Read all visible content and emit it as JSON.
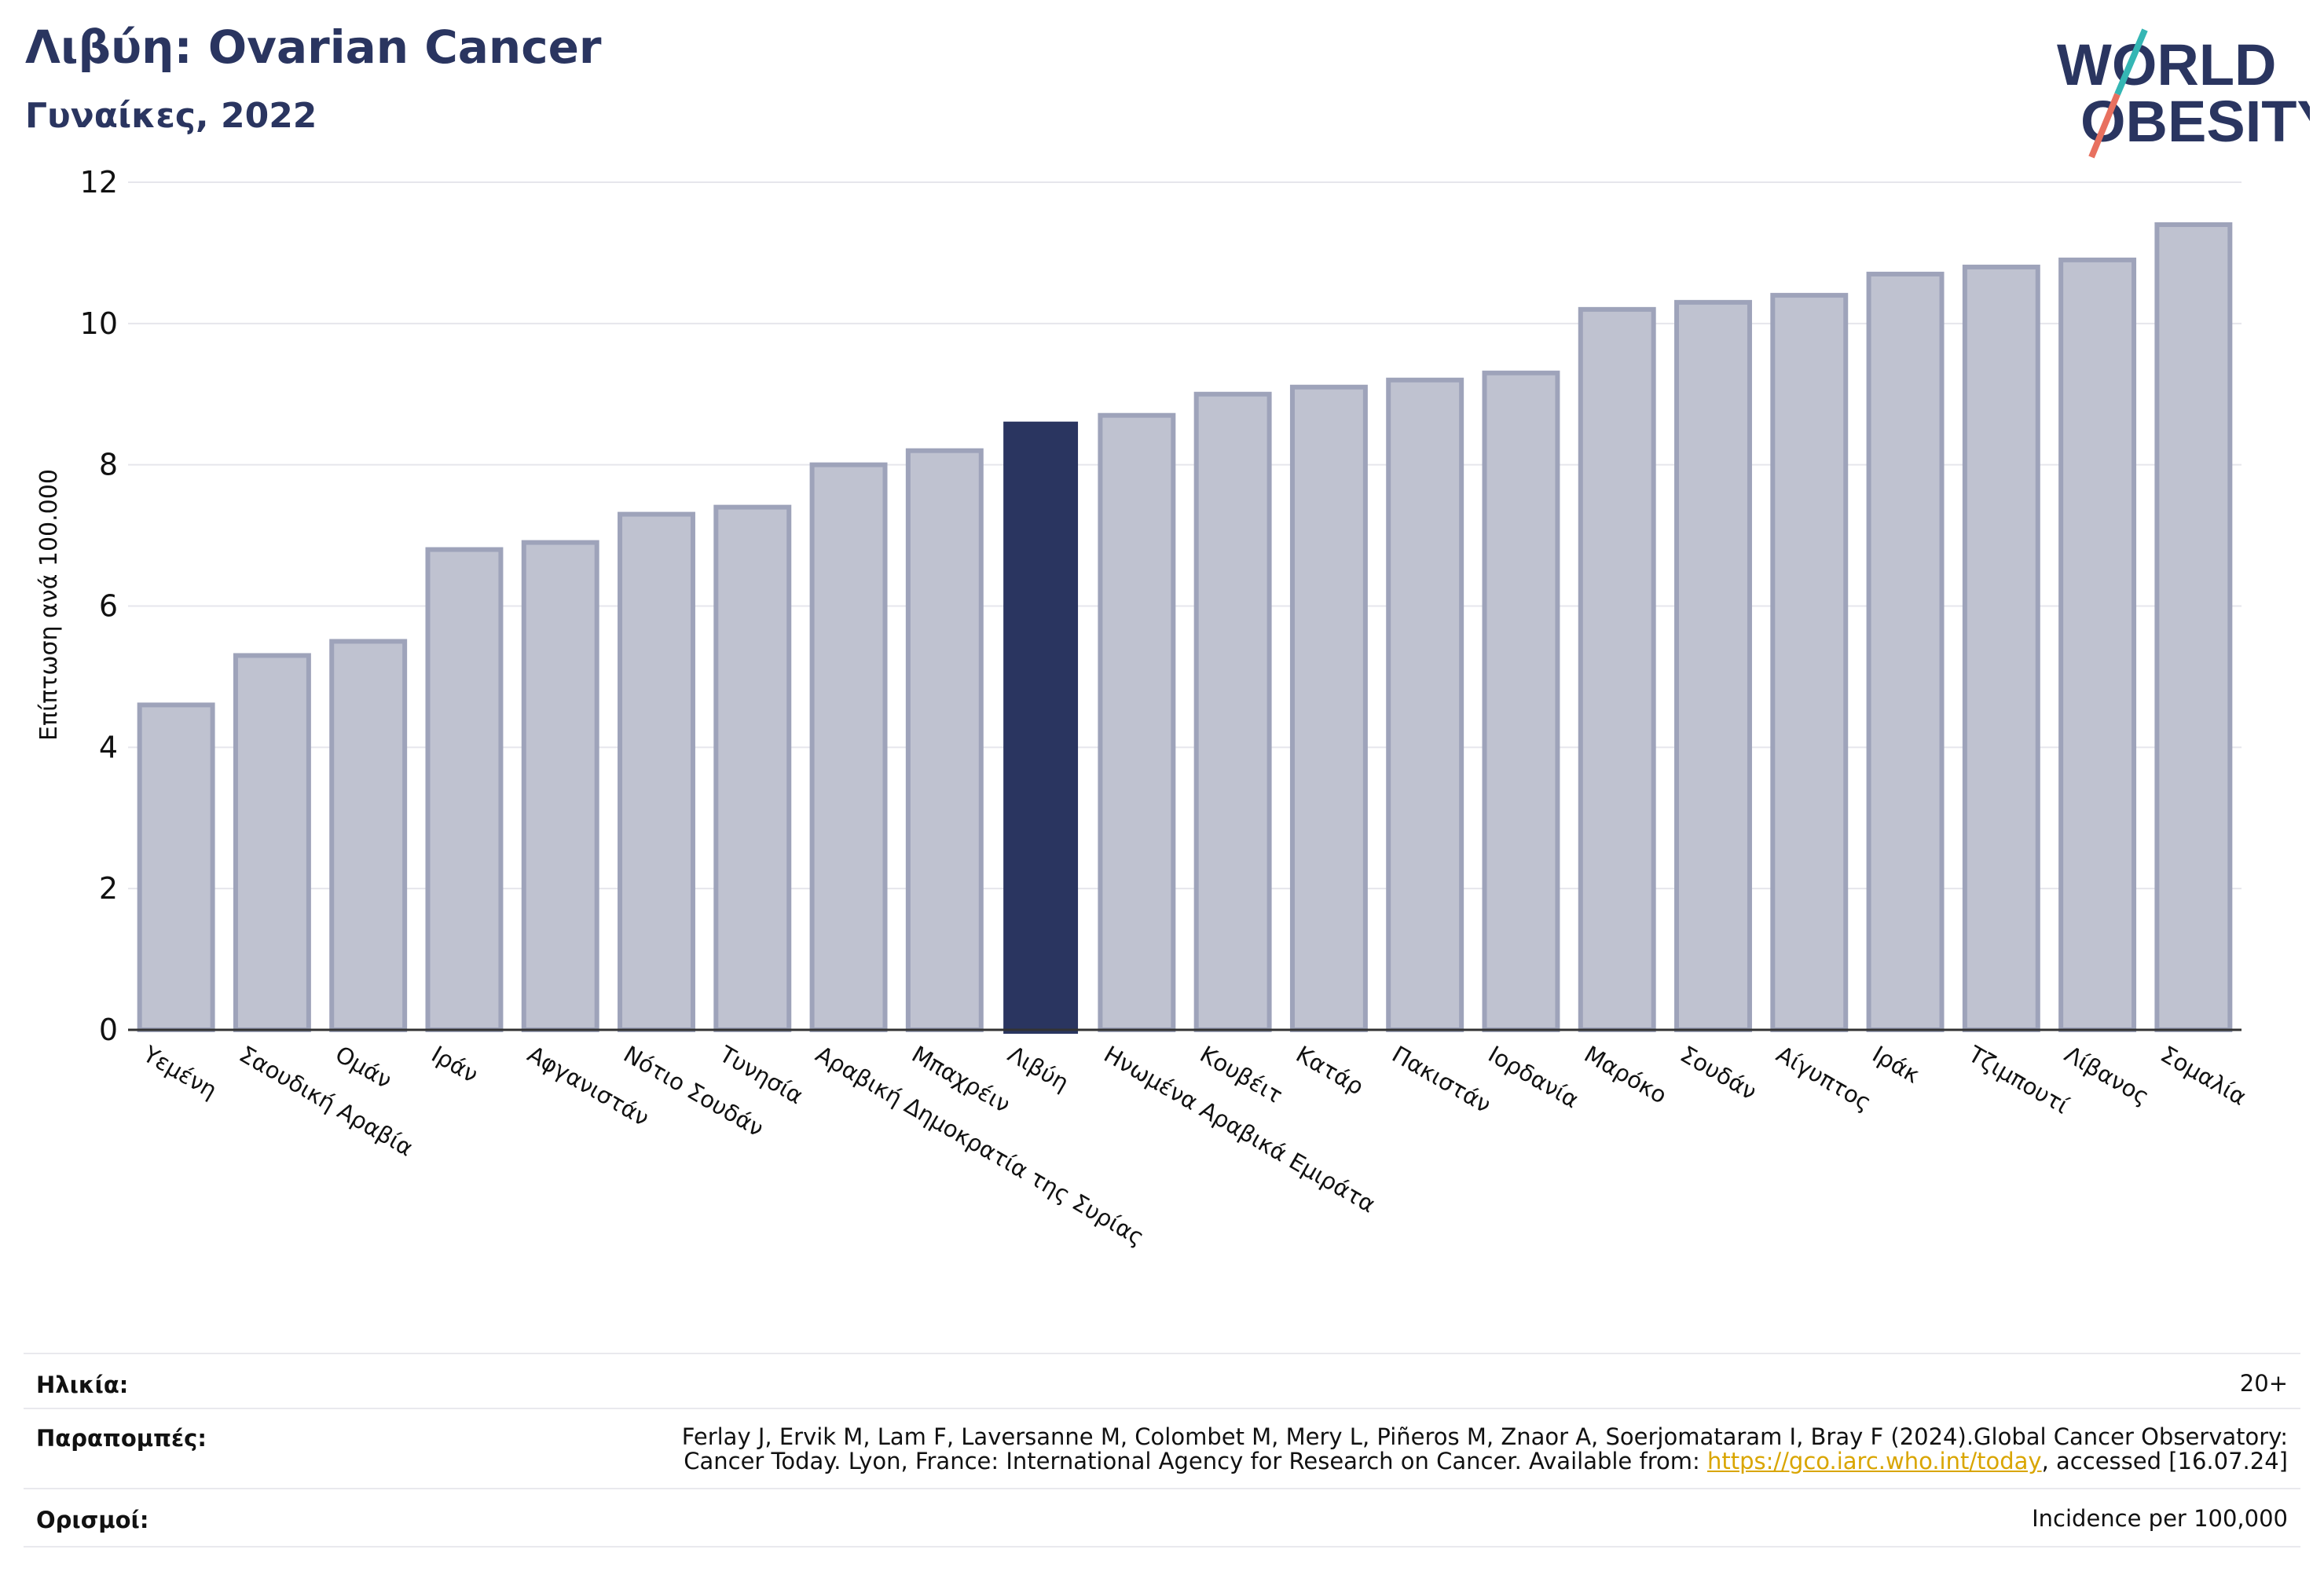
{
  "header": {
    "title": "Λιβύη: Ovarian Cancer",
    "subtitle": "Γυναίκες, 2022",
    "logo_line1": "WORLD",
    "logo_line2": "OBESITY"
  },
  "colors": {
    "highlight": "#2a3560",
    "bar_fill": "#bfc2d0",
    "bar_stroke": "#9ea3ba",
    "grid": "#e6e6ec",
    "logo_teal": "#35b6b4",
    "logo_coral": "#e8705f"
  },
  "chart_data": {
    "type": "bar",
    "ylabel": "Επίπτωση ανά 100.000",
    "ylim": [
      0,
      12
    ],
    "yticks": [
      0,
      2,
      4,
      6,
      8,
      10,
      12
    ],
    "grid": true,
    "highlight_category": "Λιβύη",
    "categories": [
      "Υεμένη",
      "Σαουδική Αραβία",
      "Ομάν",
      "Ιράν",
      "Αφγανιστάν",
      "Νότιο Σουδάν",
      "Τυνησία",
      "Αραβική Δημοκρατία της Συρίας",
      "Μπαχρέιν",
      "Λιβύη",
      "Ηνωμένα Αραβικά Εμιράτα",
      "Κουβέιτ",
      "Κατάρ",
      "Πακιστάν",
      "Ιορδανία",
      "Μαρόκο",
      "Σουδάν",
      "Αίγυπτος",
      "Ιράκ",
      "Τζιμπουτί",
      "Λίβανος",
      "Σομαλία"
    ],
    "values": [
      4.6,
      5.3,
      5.5,
      6.8,
      6.9,
      7.3,
      7.4,
      8.0,
      8.2,
      8.6,
      8.7,
      9.0,
      9.1,
      9.2,
      9.3,
      10.2,
      10.3,
      10.4,
      10.7,
      10.8,
      10.9,
      11.4
    ]
  },
  "footer": {
    "age_label": "Ηλικία:",
    "age_value": "20+",
    "refs_label": "Παραπομπές:",
    "refs_line1": "Ferlay J, Ervik M, Lam F, Laversanne M, Colombet M, Mery L, Piñeros M, Znaor A, Soerjomataram I, Bray F (2024).Global Cancer Observatory:",
    "refs_line2_pre": "Cancer Today. Lyon, France: International Agency for Research on Cancer. Available from: ",
    "refs_link": "https://gco.iarc.who.int/today",
    "refs_line2_post": ", accessed [16.07.24]",
    "defs_label": "Ορισμοί:",
    "defs_value": "Incidence per 100,000"
  }
}
